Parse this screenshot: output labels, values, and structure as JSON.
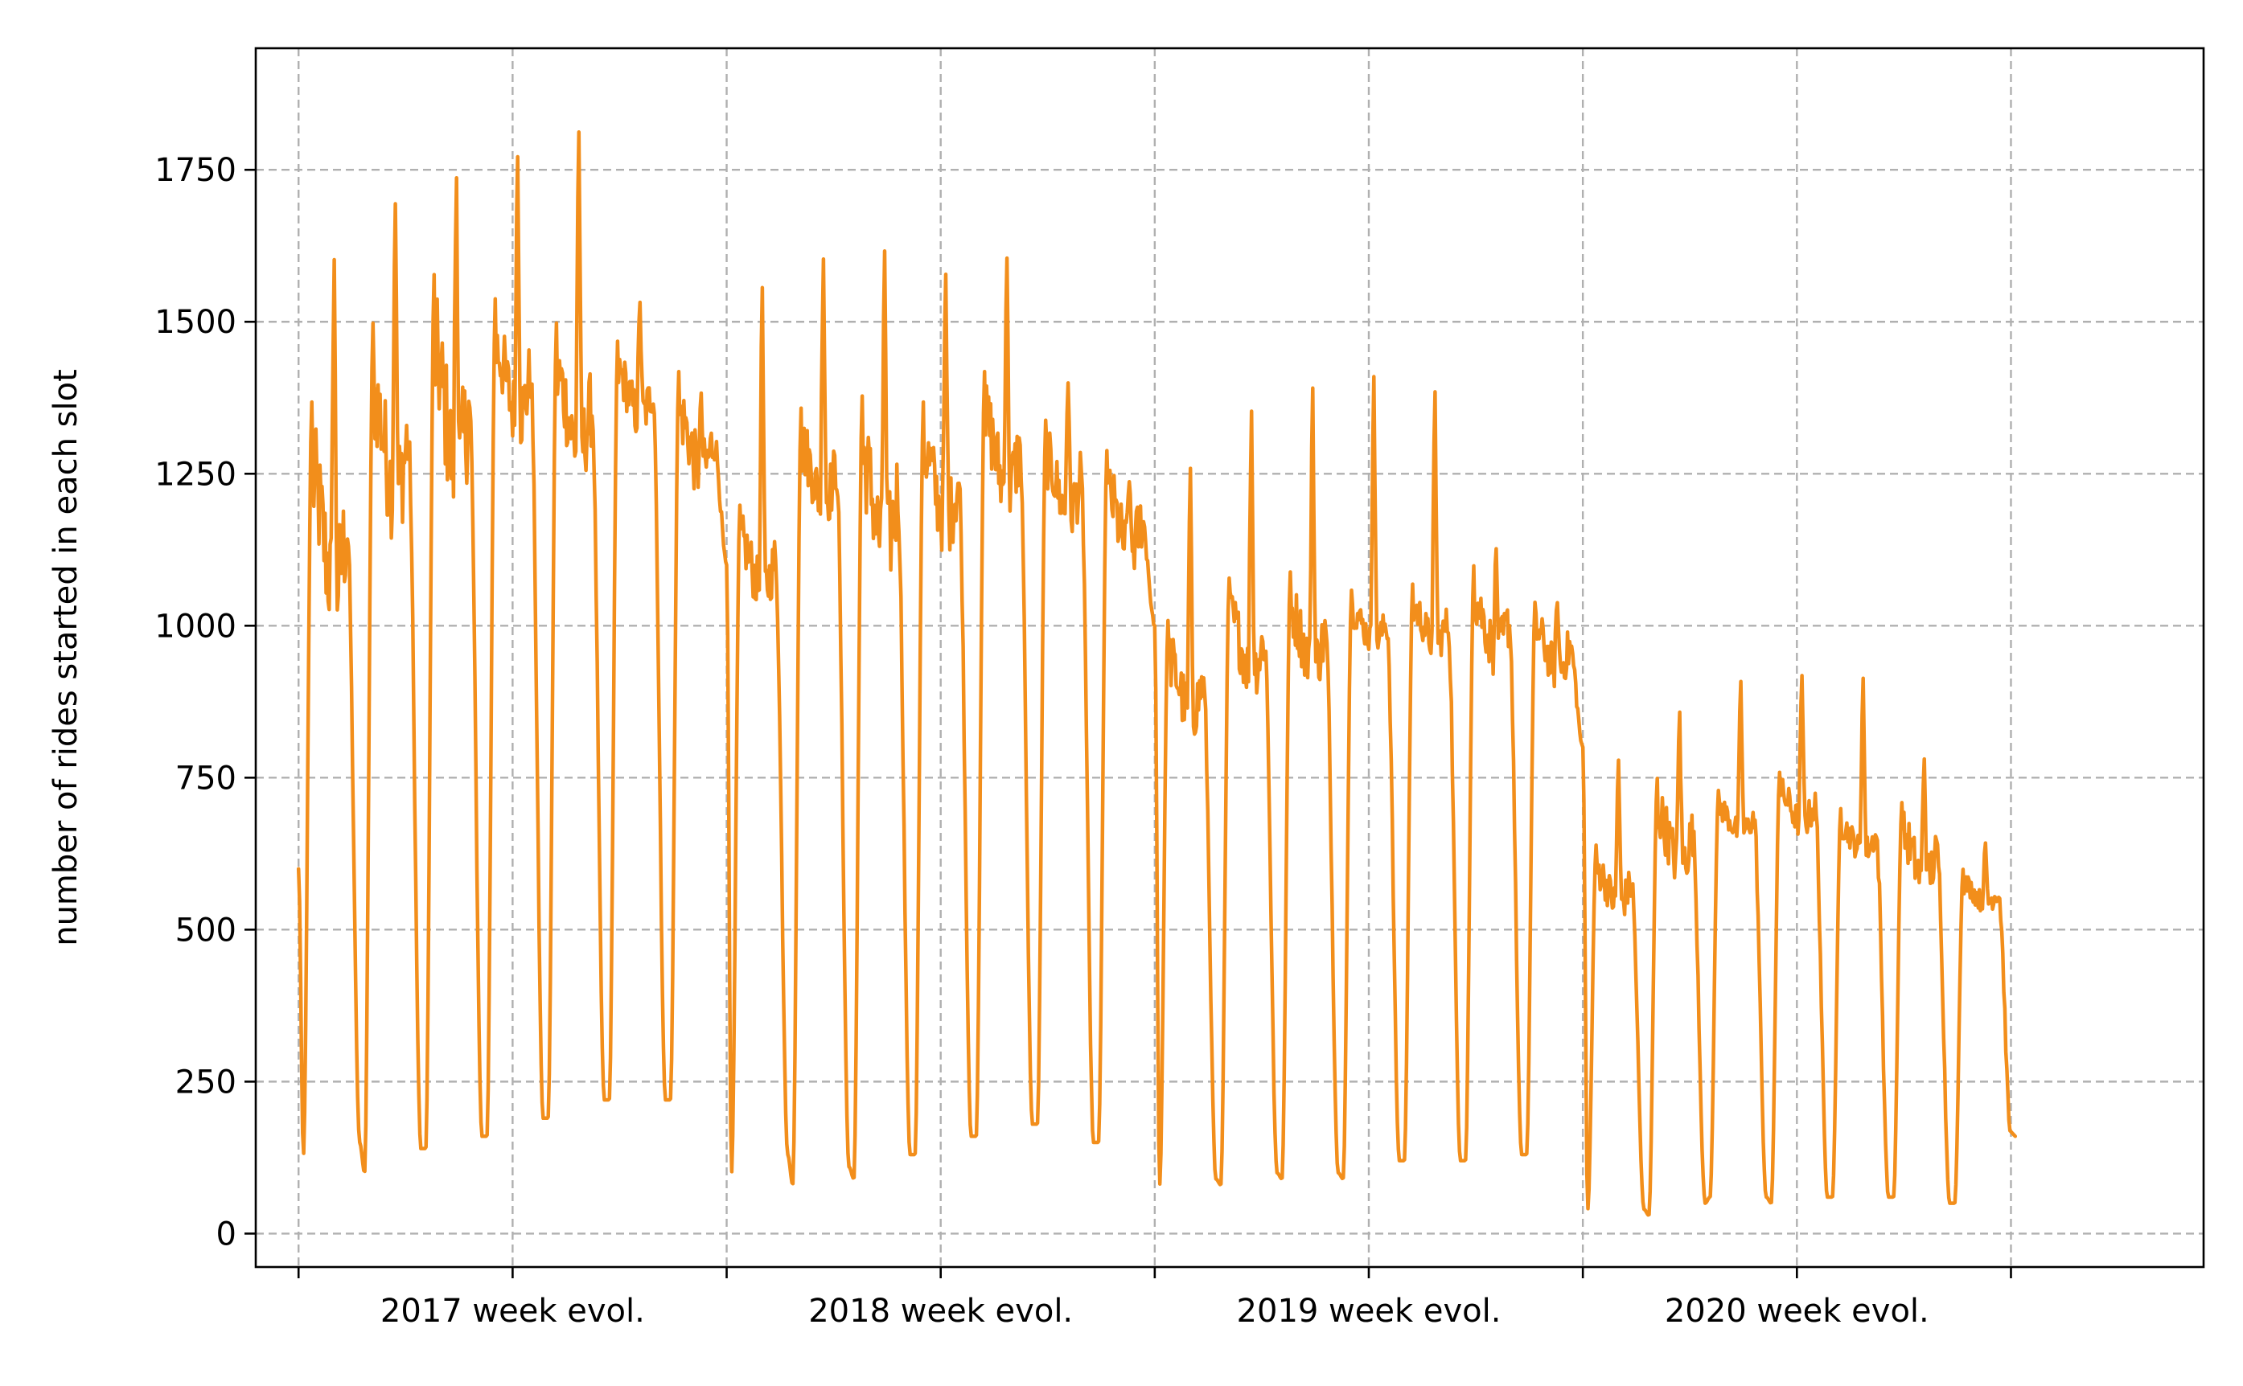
{
  "chart_data": {
    "type": "line",
    "title": "",
    "xlabel": "",
    "ylabel": "number of rides started in each slot",
    "ylim": [
      -55,
      1950
    ],
    "yticks": [
      0,
      250,
      500,
      750,
      1000,
      1250,
      1500,
      1750
    ],
    "xticks": [
      0,
      1,
      2,
      3,
      4,
      5,
      6,
      7,
      8
    ],
    "xlim": [
      -0.2,
      8.9
    ],
    "week_labels": [
      "2017 week evol.",
      "2018 week evol.",
      "2019 week evol.",
      "2020 week evol."
    ],
    "grid": true,
    "legend": "none",
    "line_color": "#f28e1b",
    "series": [
      {
        "name": "",
        "day_profiles": [
          {
            "start": 600,
            "trough": 130,
            "peak": 1370,
            "base": 1150,
            "burst": 1650,
            "end": 150
          },
          {
            "trough": 100,
            "peak": 1500,
            "base": 1300,
            "burst": 1740,
            "end": 140
          },
          {
            "trough": 140,
            "peak": 1580,
            "base": 1350,
            "burst": 1780,
            "end": 160
          },
          {
            "trough": 160,
            "peak": 1540,
            "base": 1400,
            "burst": 1810,
            "end": 190
          },
          {
            "trough": 190,
            "peak": 1500,
            "base": 1350,
            "burst": 1860,
            "end": 220
          },
          {
            "trough": 220,
            "peak": 1470,
            "base": 1380,
            "burst": 1550,
            "end": 220
          },
          {
            "trough": 220,
            "peak": 1420,
            "base": 1300,
            "burst": 1390,
            "end": 1100
          },
          {
            "trough": 100,
            "peak": 1200,
            "base": 1100,
            "burst": 1600,
            "end": 130
          },
          {
            "trough": 80,
            "peak": 1360,
            "base": 1250,
            "burst": 1640,
            "end": 110
          },
          {
            "trough": 90,
            "peak": 1380,
            "base": 1200,
            "burst": 1660,
            "end": 130
          },
          {
            "trough": 130,
            "peak": 1370,
            "base": 1230,
            "burst": 1610,
            "end": 160
          },
          {
            "trough": 160,
            "peak": 1420,
            "base": 1280,
            "burst": 1640,
            "end": 180
          },
          {
            "trough": 180,
            "peak": 1340,
            "base": 1230,
            "burst": 1420,
            "end": 150
          },
          {
            "trough": 150,
            "peak": 1290,
            "base": 1170,
            "burst": 1250,
            "end": 1000
          },
          {
            "trough": 80,
            "peak": 1010,
            "base": 900,
            "burst": 1290,
            "end": 90
          },
          {
            "trough": 80,
            "peak": 1080,
            "base": 970,
            "burst": 1390,
            "end": 100
          },
          {
            "trough": 90,
            "peak": 1090,
            "base": 980,
            "burst": 1430,
            "end": 100
          },
          {
            "trough": 90,
            "peak": 1060,
            "base": 1000,
            "burst": 1450,
            "end": 120
          },
          {
            "trough": 120,
            "peak": 1070,
            "base": 1000,
            "burst": 1420,
            "end": 120
          },
          {
            "trough": 120,
            "peak": 1100,
            "base": 1000,
            "burst": 1140,
            "end": 130
          },
          {
            "trough": 130,
            "peak": 1040,
            "base": 960,
            "burst": 1050,
            "end": 800
          },
          {
            "trough": 40,
            "peak": 640,
            "base": 570,
            "burst": 800,
            "end": 40
          },
          {
            "trough": 30,
            "peak": 750,
            "base": 650,
            "burst": 880,
            "end": 50
          },
          {
            "trough": 60,
            "peak": 730,
            "base": 680,
            "burst": 930,
            "end": 60
          },
          {
            "trough": 50,
            "peak": 760,
            "base": 700,
            "burst": 940,
            "end": 60
          },
          {
            "trough": 60,
            "peak": 700,
            "base": 650,
            "burst": 940,
            "end": 60
          },
          {
            "trough": 60,
            "peak": 710,
            "base": 620,
            "burst": 800,
            "end": 50
          },
          {
            "trough": 50,
            "peak": 600,
            "base": 560,
            "burst": 650,
            "end": 160
          }
        ]
      }
    ]
  }
}
